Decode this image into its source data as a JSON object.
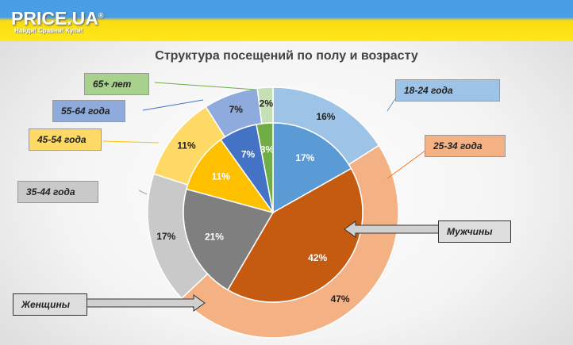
{
  "header": {
    "logo": "PRICE.UA",
    "reg": "®",
    "slogan": "Найди! Сравни! Купи!"
  },
  "chart_data": {
    "type": "pie",
    "title": "Структура посещений по полу и возрасту",
    "categories": [
      "18-24 года",
      "25-34 года",
      "35-44 года",
      "45-54 года",
      "55-64 года",
      "65+ лет"
    ],
    "series": [
      {
        "name": "Мужчины",
        "ring": "inner",
        "values": [
          17,
          42,
          21,
          11,
          7,
          3
        ],
        "colors": [
          "#5b9bd5",
          "#c55a11",
          "#7f7f7f",
          "#ffc000",
          "#4472c4",
          "#70ad47"
        ]
      },
      {
        "name": "Женщины",
        "ring": "outer",
        "values": [
          16,
          47,
          17,
          11,
          7,
          2
        ],
        "colors": [
          "#9dc3e6",
          "#f4b183",
          "#c9c9c9",
          "#ffd966",
          "#8faadc",
          "#c5e0b4"
        ]
      }
    ],
    "label_colors": [
      "#9dc3e6",
      "#f4b183",
      "#c9c9c9",
      "#ffd966",
      "#8faadc",
      "#a9d18e"
    ]
  }
}
